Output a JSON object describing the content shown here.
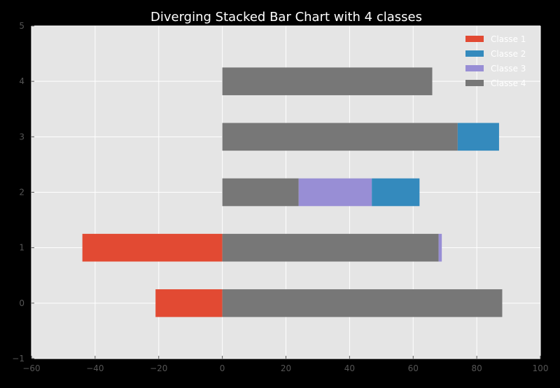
{
  "chart_data": {
    "type": "bar",
    "orientation": "horizontal",
    "stacking": "diverging",
    "title": "Diverging Stacked Bar Chart with 4 classes",
    "xlabel": "",
    "ylabel": "",
    "xlim": [
      -60,
      100
    ],
    "ylim": [
      -1,
      5
    ],
    "x_ticks": [
      "−60",
      "−40",
      "−20",
      "0",
      "20",
      "40",
      "60",
      "80",
      "100"
    ],
    "y_ticks": [
      "−1",
      "0",
      "1",
      "2",
      "3",
      "4",
      "5"
    ],
    "categories": [
      0,
      1,
      2,
      3,
      4
    ],
    "series": [
      {
        "name": "Classe 1",
        "color": "#e24a33",
        "values": [
          -21,
          -44,
          0,
          0,
          0
        ]
      },
      {
        "name": "Classe 4",
        "color": "#777777",
        "values": [
          88,
          68,
          24,
          74,
          66
        ]
      },
      {
        "name": "Classe 3",
        "color": "#988ed5",
        "values": [
          0,
          1,
          23,
          0,
          0
        ]
      },
      {
        "name": "Classe 2",
        "color": "#348abd",
        "values": [
          0,
          0,
          15,
          13,
          0
        ]
      }
    ],
    "legend": {
      "position": "top-right",
      "entries": [
        {
          "name": "Classe 1",
          "color": "#e24a33"
        },
        {
          "name": "Classe 2",
          "color": "#348abd"
        },
        {
          "name": "Classe 3",
          "color": "#988ed5"
        },
        {
          "name": "Classe 4",
          "color": "#777777"
        }
      ]
    },
    "grid": true,
    "colors": {
      "figure_bg": "#000000",
      "axes_bg": "#e5e5e5",
      "grid": "#ffffff",
      "text": "#ffffff",
      "tick_text": "#555555"
    }
  }
}
